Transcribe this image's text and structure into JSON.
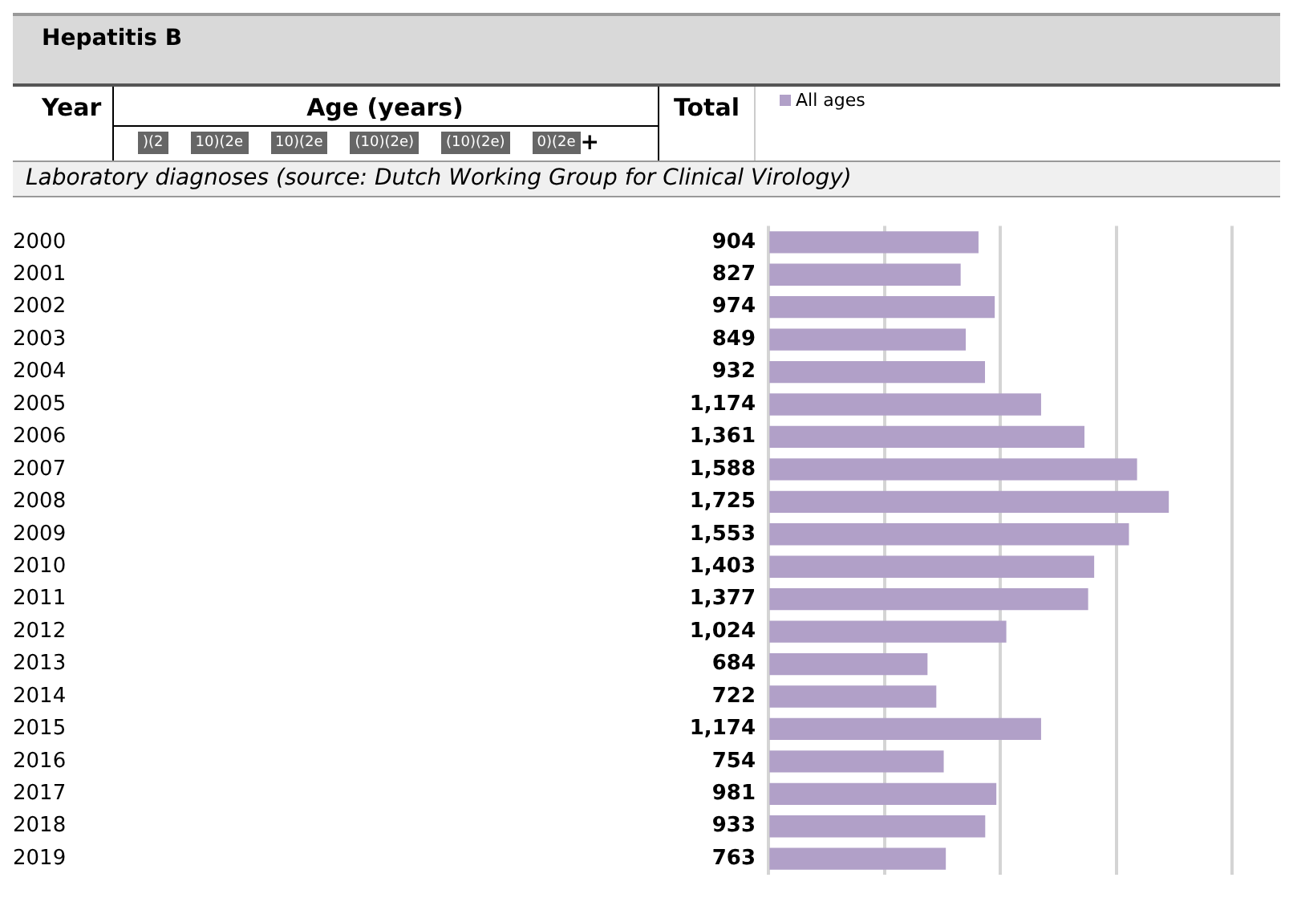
{
  "chart_data": {
    "type": "bar",
    "orientation": "horizontal",
    "title": "Hepatitis B",
    "subtitle": "Laboratory diagnoses (source: Dutch Working Group for Clinical Virology)",
    "ylabel": "Year",
    "annotations": [
      "Age (years)",
      ")(2",
      "10)(2e",
      "10)(2e",
      "(10)(2e)",
      "(10)(2e)",
      "0)(2e",
      "+",
      "Total"
    ],
    "categories": [
      "2000",
      "2001",
      "2002",
      "2003",
      "2004",
      "2005",
      "2006",
      "2007",
      "2008",
      "2009",
      "2010",
      "2011",
      "2012",
      "2013",
      "2014",
      "2015",
      "2016",
      "2017",
      "2018",
      "2019"
    ],
    "series": [
      {
        "name": "All ages",
        "color": "#b1a0c8",
        "values": [
          904,
          827,
          974,
          849,
          932,
          1174,
          1361,
          1588,
          1725,
          1553,
          1403,
          1377,
          1024,
          684,
          722,
          1174,
          754,
          981,
          933,
          763
        ],
        "value_labels": [
          "904",
          "827",
          "974",
          "849",
          "932",
          "1,174",
          "1,361",
          "1,588",
          "1,725",
          "1,553",
          "1,403",
          "1,377",
          "1,024",
          "684",
          "722",
          "1,174",
          "754",
          "981",
          "933",
          "763"
        ]
      }
    ],
    "xlim": [
      0,
      2000
    ],
    "xticks": [
      0,
      500,
      1000,
      1500,
      2000
    ],
    "tick_labels": "y",
    "grid": "x",
    "legend": "top left"
  }
}
